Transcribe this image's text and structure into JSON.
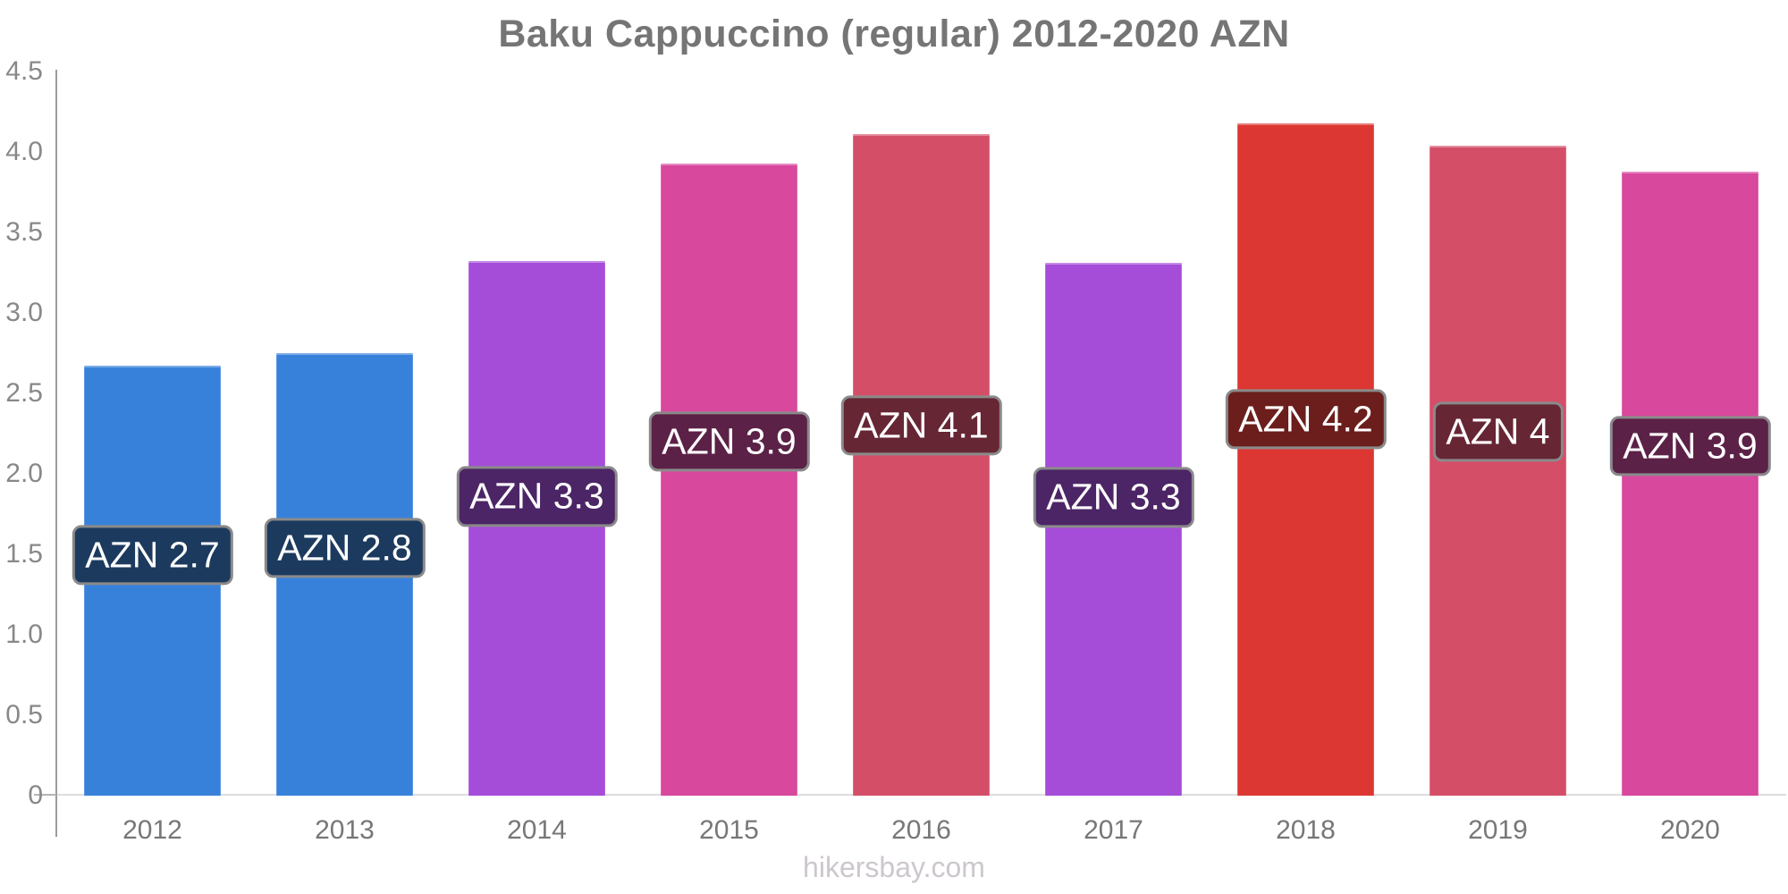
{
  "header": {
    "title": "Baku Cappuccino (regular) 2012-2020 AZN"
  },
  "footer": {
    "watermark": "hikersbay.com"
  },
  "chart_data": {
    "type": "bar",
    "title": "Baku Cappuccino (regular) 2012-2020 AZN",
    "categories": [
      "2012",
      "2013",
      "2014",
      "2015",
      "2016",
      "2017",
      "2018",
      "2019",
      "2020"
    ],
    "values": [
      2.67,
      2.75,
      3.32,
      3.93,
      4.11,
      3.31,
      4.18,
      4.04,
      3.88
    ],
    "bar_labels": [
      "AZN 2.7",
      "AZN 2.8",
      "AZN 3.3",
      "AZN 3.9",
      "AZN 4.1",
      "AZN 3.3",
      "AZN 4.2",
      "AZN 4",
      "AZN 3.9"
    ],
    "bar_colors": [
      "#3781db",
      "#3781db",
      "#a54cd9",
      "#d8489d",
      "#d54e68",
      "#a54cd9",
      "#dc3732",
      "#d54e68",
      "#d8489d"
    ],
    "label_bg_colors": [
      "#1c3a5e",
      "#1c3a5e",
      "#4c2566",
      "#5c2147",
      "#662634",
      "#4c2566",
      "#6b1e1b",
      "#662634",
      "#5c2147"
    ],
    "xlabel": "",
    "ylabel": "",
    "ylim": [
      0,
      4.5
    ],
    "y_ticks": [
      "4.5",
      "4.0",
      "3.5",
      "3.0",
      "2.5",
      "2.0",
      "1.5",
      "1.0",
      "0.5",
      "0"
    ],
    "grid": false,
    "legend": false,
    "currency": "AZN"
  },
  "style": {
    "background": "#ffffff",
    "title_color": "#757575",
    "axis_text_color": "#888888",
    "x_tick_text_color": "#777777",
    "axis_line_color": "#9b9b9b",
    "baseline_color": "#dddddd",
    "zero_tick_color": "#b5b5b5",
    "bar_label_text_color": "#ffffff",
    "bar_label_border_color": "#8a8a8a",
    "watermark_color": "#cdc7cd"
  }
}
